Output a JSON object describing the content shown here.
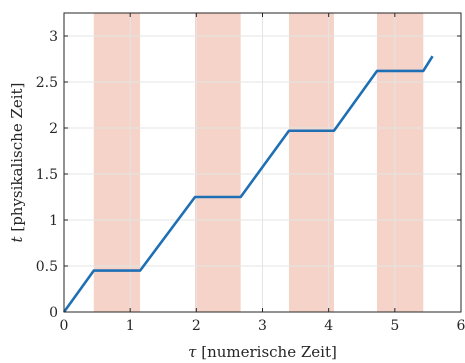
{
  "chart_data": {
    "type": "line",
    "title": "",
    "xlabel_symbol": "τ",
    "xlabel_text": " [numerische Zeit]",
    "ylabel_symbol": "t",
    "ylabel_text": " [physikalische Zeit]",
    "xlim": [
      0,
      6
    ],
    "ylim": [
      0,
      3.25
    ],
    "x_ticks": [
      {
        "value": 0,
        "label": "0"
      },
      {
        "value": 1,
        "label": "1"
      },
      {
        "value": 2,
        "label": "2"
      },
      {
        "value": 3,
        "label": "3"
      },
      {
        "value": 4,
        "label": "4"
      },
      {
        "value": 5,
        "label": "5"
      },
      {
        "value": 6,
        "label": "6"
      }
    ],
    "y_ticks": [
      {
        "value": 0,
        "label": "0"
      },
      {
        "value": 0.5,
        "label": "0.5"
      },
      {
        "value": 1,
        "label": "1"
      },
      {
        "value": 1.5,
        "label": "1.5"
      },
      {
        "value": 2,
        "label": "2"
      },
      {
        "value": 2.5,
        "label": "2.5"
      },
      {
        "value": 3,
        "label": "3"
      }
    ],
    "grid": true,
    "shaded_intervals": [
      [
        0.45,
        1.15
      ],
      [
        1.98,
        2.67
      ],
      [
        3.4,
        4.08
      ],
      [
        4.73,
        5.43
      ]
    ],
    "series": [
      {
        "x": [
          0,
          0.45,
          1.15,
          1.98,
          2.67,
          3.4,
          4.08,
          4.73,
          5.43,
          5.57
        ],
        "y": [
          0,
          0.45,
          0.45,
          1.25,
          1.25,
          1.97,
          1.97,
          2.62,
          2.62,
          2.78
        ]
      }
    ],
    "colors": {
      "line": "#1f6fb5",
      "shade": "#f5d3c8",
      "grid": "#e4e4e4",
      "axis": "#262626"
    }
  }
}
